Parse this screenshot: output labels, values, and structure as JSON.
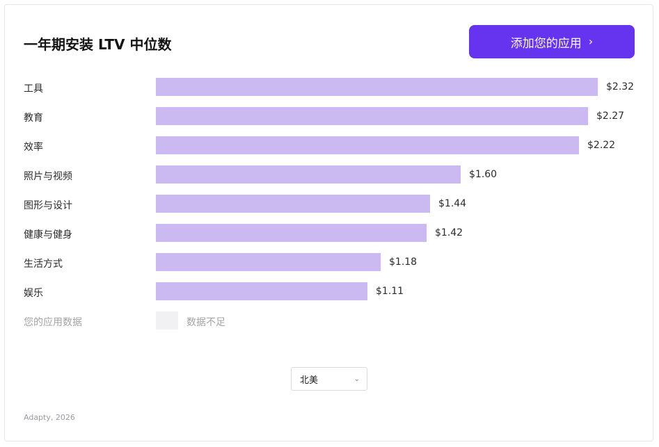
{
  "header": {
    "title": "一年期安装 LTV 中位数",
    "cta_label": "添加您的应用",
    "cta_icon": "chevron-right-icon"
  },
  "chart_data": {
    "type": "bar",
    "orientation": "horizontal",
    "title": "一年期安装 LTV 中位数",
    "categories": [
      "工具",
      "教育",
      "效率",
      "照片与视频",
      "图形与设计",
      "健康与健身",
      "生活方式",
      "娱乐"
    ],
    "values": [
      2.32,
      2.27,
      2.22,
      1.6,
      1.44,
      1.42,
      1.18,
      1.11
    ],
    "value_labels": [
      "$2.32",
      "$2.27",
      "$2.22",
      "$1.60",
      "$1.44",
      "$1.42",
      "$1.18",
      "$1.11"
    ],
    "bar_color": "#cbb9f2",
    "xlim": [
      0,
      2.32
    ],
    "grid": false,
    "legend": "none",
    "extra_row": {
      "label": "您的应用数据",
      "note": "数据不足",
      "placeholder_color": "#f1f1f4"
    }
  },
  "controls": {
    "region_value": "北美",
    "region_icon": "chevron-down-icon"
  },
  "footer": {
    "source": "Adapty, 2026"
  },
  "colors": {
    "accent": "#6633ee",
    "bar": "#cbb9f2",
    "muted_text": "#a3a3a8"
  }
}
